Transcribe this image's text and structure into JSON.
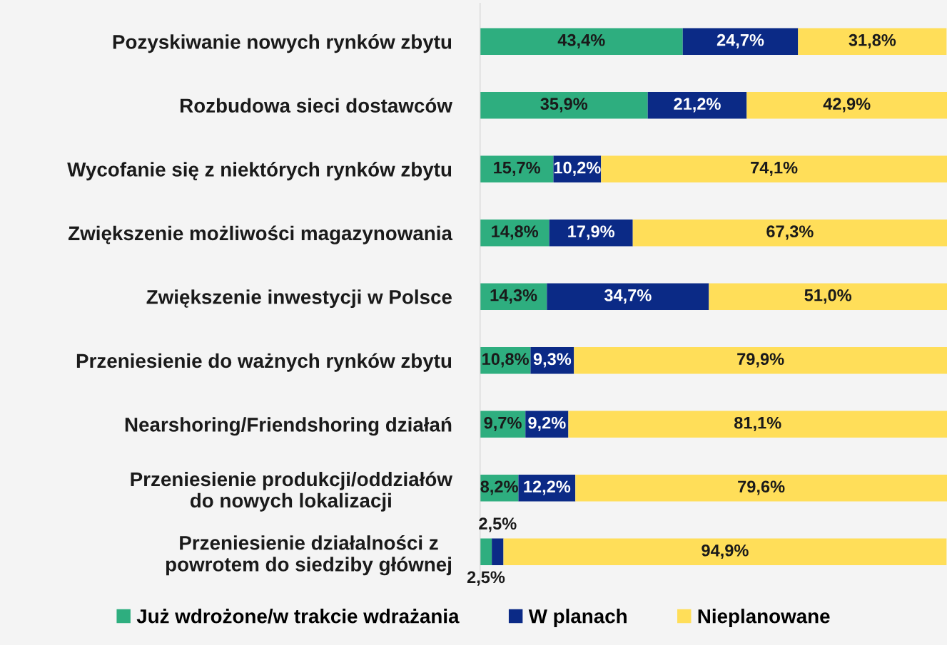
{
  "chart_data": {
    "type": "bar",
    "orientation": "horizontal",
    "stacked": true,
    "categories": [
      "Pozyskiwanie nowych rynków zbytu",
      "Rozbudowa sieci dostawców",
      "Wycofanie się z niektórych rynków zbytu",
      "Zwiększenie możliwości magazynowania",
      "Zwiększenie inwestycji w Polsce",
      "Przeniesienie do ważnych rynków zbytu",
      "Nearshoring/Friendshoring działań",
      "Przeniesienie produkcji/oddziałów do nowych lokalizacji",
      "Przeniesienie działalności z powrotem do siedziby głównej"
    ],
    "series": [
      {
        "name": "Już wdrożone/w trakcie wdrażania",
        "color": "#2eae7f",
        "values": [
          43.4,
          35.9,
          15.7,
          14.8,
          14.3,
          10.8,
          9.7,
          8.2,
          2.5
        ],
        "value_labels": [
          "43,4%",
          "35,9%",
          "15,7%",
          "14,8%",
          "14,3%",
          "10,8%",
          "9,7%",
          "8,2%",
          "2,5%"
        ]
      },
      {
        "name": "W planach",
        "color": "#0b2a86",
        "values": [
          24.7,
          21.2,
          10.2,
          17.9,
          34.7,
          9.3,
          9.2,
          12.2,
          2.5
        ],
        "value_labels": [
          "24,7%",
          "21,2%",
          "10,2%",
          "17,9%",
          "34,7%",
          "9,3%",
          "9,2%",
          "12,2%",
          "2,5%"
        ]
      },
      {
        "name": "Nieplanowane",
        "color": "#ffde59",
        "values": [
          31.8,
          42.9,
          74.1,
          67.3,
          51.0,
          79.9,
          81.1,
          79.6,
          94.9
        ],
        "value_labels": [
          "31,8%",
          "42,9%",
          "74,1%",
          "67,3%",
          "51,0%",
          "79,9%",
          "81,1%",
          "79,6%",
          "94,9%"
        ]
      }
    ],
    "xlim": [
      0,
      100
    ],
    "tick_labels": "y",
    "legend": "bottom",
    "grid": false
  }
}
